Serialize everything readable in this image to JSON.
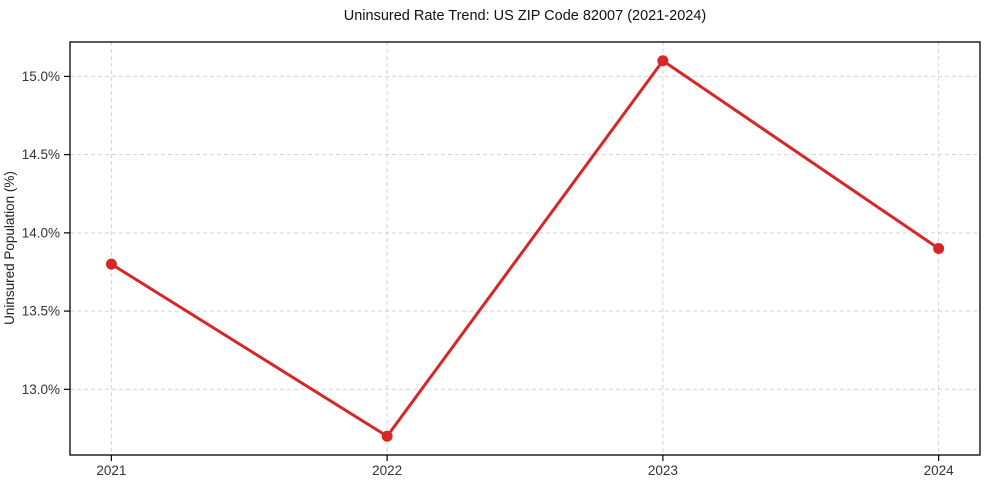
{
  "chart_data": {
    "type": "line",
    "title": "Uninsured Rate Trend: US ZIP Code 82007 (2021-2024)",
    "xlabel": "",
    "ylabel": "Uninsured Population (%)",
    "x": [
      2021,
      2022,
      2023,
      2024
    ],
    "values": [
      13.8,
      12.7,
      15.1,
      13.9
    ],
    "xticks": [
      2021,
      2022,
      2023,
      2024
    ],
    "xtick_labels": [
      "2021",
      "2022",
      "2023",
      "2024"
    ],
    "yticks": [
      13.0,
      13.5,
      14.0,
      14.5,
      15.0
    ],
    "ytick_labels": [
      "13.0%",
      "13.5%",
      "14.0%",
      "14.5%",
      "15.0%"
    ],
    "xlim": [
      2020.85,
      2024.15
    ],
    "ylim": [
      12.58,
      15.22
    ],
    "grid": true,
    "grid_style": "dashed",
    "legend": "none",
    "line_color": "#d62728",
    "marker": "circle",
    "marker_radius": 5.5,
    "line_width": 3,
    "grid_color": "#cccccc",
    "axis_color": "#000000",
    "tick_label_color": "#333333",
    "title_color": "#111111",
    "background": "#ffffff"
  }
}
